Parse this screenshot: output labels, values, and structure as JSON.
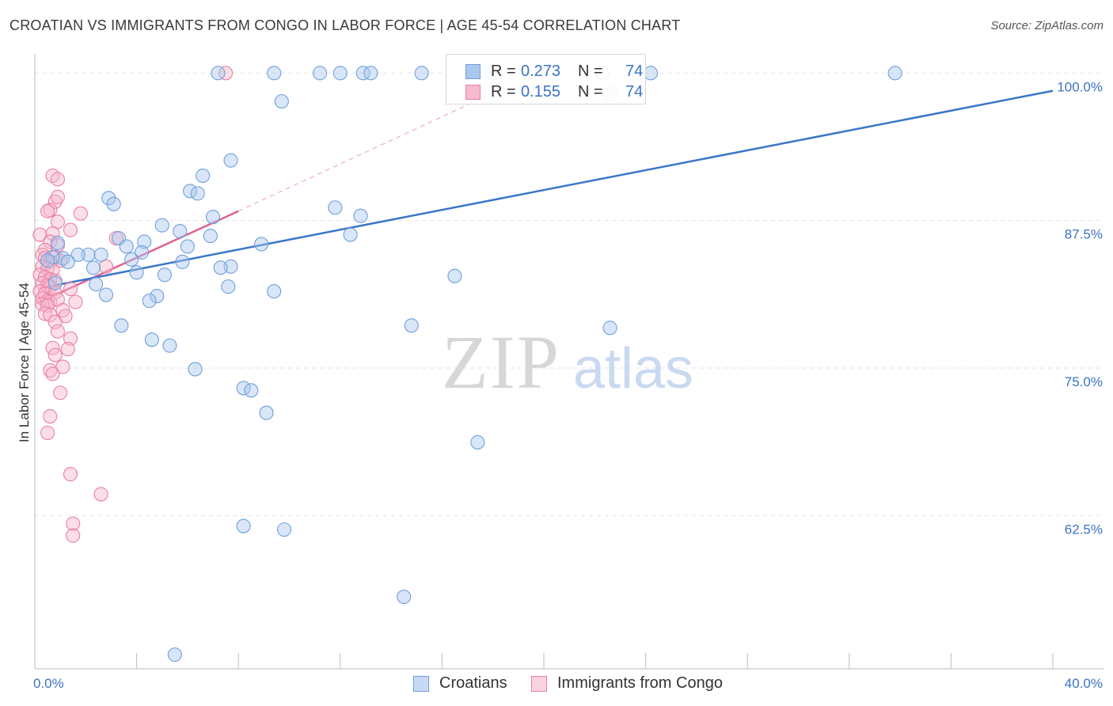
{
  "title": "CROATIAN VS IMMIGRANTS FROM CONGO IN LABOR FORCE | AGE 45-54 CORRELATION CHART",
  "source": "Source: ZipAtlas.com",
  "watermark": {
    "zip": "ZIP",
    "atlas": "atlas"
  },
  "colors": {
    "blue_fill": "#a9c8ef",
    "blue_stroke": "#6f9fdc",
    "blue_line": "#3a76c9",
    "pink_fill": "#f6b9cd",
    "pink_stroke": "#ec7fa1",
    "pink_line": "#e06191",
    "axis_label": "#3b73c4",
    "grid": "#e3e3e3"
  },
  "legend": {
    "series": [
      {
        "r_label": "R =",
        "r_value": "0.273",
        "n_label": "N =",
        "n_value": "74"
      },
      {
        "r_label": "R =",
        "r_value": "0.155",
        "n_label": "N =",
        "n_value": "74"
      }
    ]
  },
  "bottom_legend": [
    "Croatians",
    "Immigrants from Congo"
  ],
  "chart_data": {
    "type": "scatter",
    "title": "CROATIAN VS IMMIGRANTS FROM CONGO IN LABOR FORCE | AGE 45-54 CORRELATION CHART",
    "xlabel": "",
    "ylabel": "In Labor Force | Age 45-54",
    "xlim": [
      0,
      40
    ],
    "ylim": [
      49.5,
      101.5
    ],
    "x_tick_labels": [
      "0.0%",
      "40.0%"
    ],
    "y_ticks": [
      62.5,
      75.0,
      87.5,
      100.0
    ],
    "y_tick_labels": [
      "62.5%",
      "75.0%",
      "87.5%",
      "100.0%"
    ],
    "grid": true,
    "series": [
      {
        "name": "Croatians",
        "r": 0.273,
        "n": 74,
        "trend": {
          "x": [
            0.3,
            40.0
          ],
          "y": [
            81.8,
            98.5
          ]
        },
        "points": [
          [
            7.2,
            100
          ],
          [
            9.4,
            100
          ],
          [
            11.2,
            100
          ],
          [
            12.0,
            100
          ],
          [
            12.9,
            100
          ],
          [
            13.2,
            100
          ],
          [
            15.2,
            100
          ],
          [
            18.0,
            100
          ],
          [
            22.3,
            100
          ],
          [
            24.2,
            100
          ],
          [
            33.8,
            100
          ],
          [
            22.6,
            98.2
          ],
          [
            9.7,
            97.6
          ],
          [
            7.7,
            92.6
          ],
          [
            6.6,
            91.3
          ],
          [
            6.1,
            90.0
          ],
          [
            6.4,
            89.8
          ],
          [
            2.9,
            89.4
          ],
          [
            3.1,
            88.9
          ],
          [
            11.8,
            88.6
          ],
          [
            12.8,
            87.9
          ],
          [
            7.0,
            87.8
          ],
          [
            5.0,
            87.1
          ],
          [
            5.7,
            86.6
          ],
          [
            6.9,
            86.2
          ],
          [
            3.3,
            86.0
          ],
          [
            12.4,
            86.3
          ],
          [
            0.9,
            85.6
          ],
          [
            4.3,
            85.7
          ],
          [
            3.6,
            85.3
          ],
          [
            6.0,
            85.3
          ],
          [
            8.9,
            85.5
          ],
          [
            2.1,
            84.6
          ],
          [
            4.2,
            84.8
          ],
          [
            1.7,
            84.6
          ],
          [
            2.6,
            84.6
          ],
          [
            1.1,
            84.3
          ],
          [
            0.7,
            84.4
          ],
          [
            0.5,
            84.1
          ],
          [
            1.3,
            84.0
          ],
          [
            3.8,
            84.2
          ],
          [
            5.8,
            84.0
          ],
          [
            2.3,
            83.5
          ],
          [
            7.7,
            83.6
          ],
          [
            7.3,
            83.5
          ],
          [
            4.0,
            83.1
          ],
          [
            5.1,
            82.9
          ],
          [
            16.5,
            82.8
          ],
          [
            0.8,
            82.2
          ],
          [
            2.4,
            82.1
          ],
          [
            7.6,
            81.9
          ],
          [
            9.4,
            81.5
          ],
          [
            2.8,
            81.2
          ],
          [
            4.8,
            81.1
          ],
          [
            4.5,
            80.7
          ],
          [
            3.4,
            78.6
          ],
          [
            14.8,
            78.6
          ],
          [
            22.6,
            78.4
          ],
          [
            4.6,
            77.4
          ],
          [
            5.3,
            76.9
          ],
          [
            6.3,
            74.9
          ],
          [
            8.2,
            73.3
          ],
          [
            8.5,
            73.1
          ],
          [
            9.1,
            71.2
          ],
          [
            17.4,
            68.7
          ],
          [
            8.2,
            61.6
          ],
          [
            9.8,
            61.3
          ],
          [
            14.5,
            55.6
          ],
          [
            5.5,
            50.7
          ]
        ]
      },
      {
        "name": "Immigrants from Congo",
        "r": 0.155,
        "n": 74,
        "trend": {
          "x": [
            0.1,
            8.0
          ],
          "y": [
            80.5,
            88.3
          ]
        },
        "trend_extended": {
          "x": [
            8.0,
            18.0
          ],
          "y": [
            88.3,
            98.3
          ]
        },
        "points": [
          [
            7.5,
            100
          ],
          [
            0.7,
            91.3
          ],
          [
            0.9,
            91.0
          ],
          [
            0.8,
            89.1
          ],
          [
            0.9,
            89.5
          ],
          [
            1.8,
            88.1
          ],
          [
            0.6,
            88.4
          ],
          [
            0.5,
            88.3
          ],
          [
            0.9,
            87.4
          ],
          [
            1.4,
            86.7
          ],
          [
            0.2,
            86.3
          ],
          [
            0.7,
            86.4
          ],
          [
            3.2,
            86.0
          ],
          [
            0.6,
            85.7
          ],
          [
            0.9,
            85.4
          ],
          [
            0.4,
            85.0
          ],
          [
            0.3,
            84.6
          ],
          [
            0.4,
            84.3
          ],
          [
            0.8,
            84.4
          ],
          [
            0.6,
            84.0
          ],
          [
            1.0,
            84.1
          ],
          [
            0.3,
            83.6
          ],
          [
            0.5,
            83.4
          ],
          [
            0.7,
            83.3
          ],
          [
            2.8,
            83.6
          ],
          [
            0.2,
            82.9
          ],
          [
            0.4,
            82.7
          ],
          [
            0.6,
            82.5
          ],
          [
            0.8,
            82.4
          ],
          [
            0.3,
            82.2
          ],
          [
            0.5,
            82.0
          ],
          [
            0.6,
            81.9
          ],
          [
            0.2,
            81.5
          ],
          [
            0.4,
            81.3
          ],
          [
            0.8,
            81.4
          ],
          [
            1.4,
            81.7
          ],
          [
            0.3,
            80.9
          ],
          [
            0.5,
            80.7
          ],
          [
            0.6,
            80.6
          ],
          [
            0.9,
            80.8
          ],
          [
            1.6,
            80.6
          ],
          [
            0.3,
            80.4
          ],
          [
            0.5,
            80.3
          ],
          [
            1.1,
            79.9
          ],
          [
            1.2,
            79.4
          ],
          [
            0.4,
            79.6
          ],
          [
            0.6,
            79.5
          ],
          [
            0.8,
            78.9
          ],
          [
            0.9,
            78.1
          ],
          [
            1.4,
            77.5
          ],
          [
            0.7,
            76.7
          ],
          [
            1.3,
            76.6
          ],
          [
            0.8,
            76.1
          ],
          [
            1.1,
            75.1
          ],
          [
            0.6,
            74.8
          ],
          [
            0.7,
            74.5
          ],
          [
            1.0,
            72.9
          ],
          [
            0.6,
            70.9
          ],
          [
            0.5,
            69.5
          ],
          [
            1.4,
            66.0
          ],
          [
            2.6,
            64.3
          ],
          [
            1.5,
            61.8
          ],
          [
            1.5,
            60.8
          ]
        ]
      }
    ]
  }
}
